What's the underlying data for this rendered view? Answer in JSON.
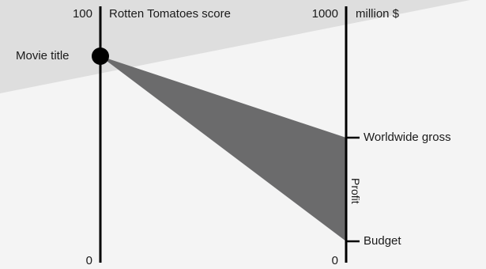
{
  "colors": {
    "background": "#f4f4f4",
    "upper_band": "#dedede",
    "wedge": "#6b6b6c",
    "ink": "#000000"
  },
  "left_axis": {
    "max_label": "100",
    "min_label": "0",
    "title": "Rotten Tomatoes score"
  },
  "right_axis": {
    "max_label": "1000",
    "min_label": "0",
    "unit": "million $"
  },
  "point_label": "Movie title",
  "markers": {
    "gross_label": "Worldwide gross",
    "budget_label": "Budget",
    "profit_label": "Profit"
  }
}
